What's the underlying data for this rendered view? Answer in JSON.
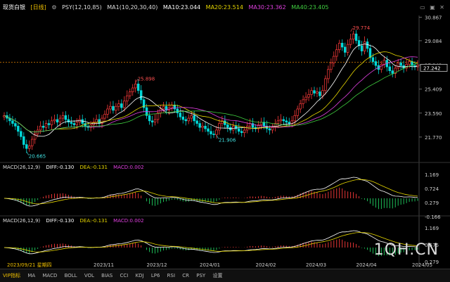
{
  "header": {
    "symbol": "现货白银",
    "period": "[日线]",
    "psy": "PSY(12,10,85)",
    "ma_label": "MA1(10,20,30,40)",
    "ma10": "MA10:23.044",
    "ma20": "MA20:23.514",
    "ma30": "MA30:23.362",
    "ma40": "MA40:23.405"
  },
  "icons": [
    "minimize-icon",
    "restore-icon",
    "close-icon"
  ],
  "macd1": {
    "label": "MACD(26,12,9)",
    "diff": "DIFF:-0.130",
    "dea": "DEA:-0.131",
    "macd": "MACD:0.002"
  },
  "macd2": {
    "label": "MACD(26,12,9)",
    "diff": "DIFF:-0.130",
    "dea": "DEA:-0.131",
    "macd": "MACD:0.002"
  },
  "chart_data": {
    "type": "candlestick",
    "price_axis_ticks": [
      "30.867",
      "29.084",
      "27.242",
      "25.409",
      "23.590",
      "21.770"
    ],
    "price_ticks_values": [
      30.867,
      29.084,
      27.242,
      25.409,
      23.59,
      21.77
    ],
    "current_price": "27.242",
    "ylim": [
      20.0,
      31.0
    ],
    "annotations": [
      {
        "label": "20.665",
        "value": 20.665,
        "index": 8
      },
      {
        "label": "25.898",
        "value": 25.898,
        "index": 47
      },
      {
        "label": "21.906",
        "value": 21.906,
        "index": 76
      },
      {
        "label": "29.774",
        "value": 29.774,
        "index": 124
      }
    ],
    "x_ticks": [
      {
        "label": "2023/09/21 星期四",
        "index": 0
      },
      {
        "label": "2023/11",
        "index": 35
      },
      {
        "label": "2023/12",
        "index": 54
      },
      {
        "label": "2024/01",
        "index": 73
      },
      {
        "label": "2024/02",
        "index": 93
      },
      {
        "label": "2024/03",
        "index": 111
      },
      {
        "label": "2024/04",
        "index": 129
      },
      {
        "label": "2024/05",
        "index": 149
      }
    ],
    "closes": [
      23.4,
      23.2,
      23.0,
      22.8,
      22.6,
      22.2,
      21.8,
      21.2,
      20.9,
      21.1,
      21.6,
      22.0,
      22.3,
      22.6,
      22.5,
      22.8,
      22.7,
      23.0,
      23.1,
      22.9,
      23.2,
      23.4,
      23.1,
      22.9,
      22.8,
      22.7,
      22.9,
      23.1,
      22.8,
      22.6,
      22.5,
      22.7,
      22.9,
      23.1,
      22.8,
      23.2,
      23.5,
      23.9,
      24.1,
      23.8,
      24.1,
      24.3,
      24.0,
      24.5,
      24.9,
      25.2,
      25.5,
      25.8,
      25.3,
      24.6,
      24.0,
      23.4,
      23.0,
      22.9,
      23.1,
      23.6,
      23.9,
      24.1,
      23.8,
      24.0,
      24.2,
      23.9,
      23.6,
      23.3,
      23.1,
      23.0,
      23.2,
      23.4,
      23.0,
      22.8,
      22.5,
      22.6,
      22.4,
      22.2,
      22.0,
      21.95,
      22.3,
      22.8,
      23.0,
      22.7,
      22.5,
      22.3,
      22.6,
      22.4,
      22.2,
      22.1,
      22.3,
      22.6,
      22.8,
      22.5,
      22.4,
      22.7,
      22.9,
      22.6,
      22.4,
      22.3,
      22.5,
      22.8,
      23.0,
      23.1,
      23.0,
      22.9,
      22.8,
      23.0,
      23.4,
      23.9,
      24.3,
      24.6,
      24.8,
      25.0,
      25.3,
      25.1,
      25.2,
      24.9,
      25.3,
      26.2,
      26.9,
      27.4,
      27.9,
      28.4,
      28.9,
      28.6,
      28.2,
      28.8,
      29.2,
      29.6,
      29.1,
      28.7,
      28.3,
      29.0,
      28.5,
      27.8,
      27.5,
      27.2,
      26.9,
      27.3,
      27.6,
      27.1,
      26.8,
      26.6,
      27.0,
      27.4,
      27.2,
      27.0,
      27.3,
      27.5,
      27.2,
      27.1,
      27.242
    ]
  },
  "watermark": "1QH.CN",
  "tabs": [
    "VIP指标",
    "MA",
    "MACD",
    "BOLL",
    "VOL",
    "BIAS",
    "CCI",
    "KDJ",
    "LP6",
    "RSI",
    "CR",
    "PSY",
    "设置"
  ]
}
